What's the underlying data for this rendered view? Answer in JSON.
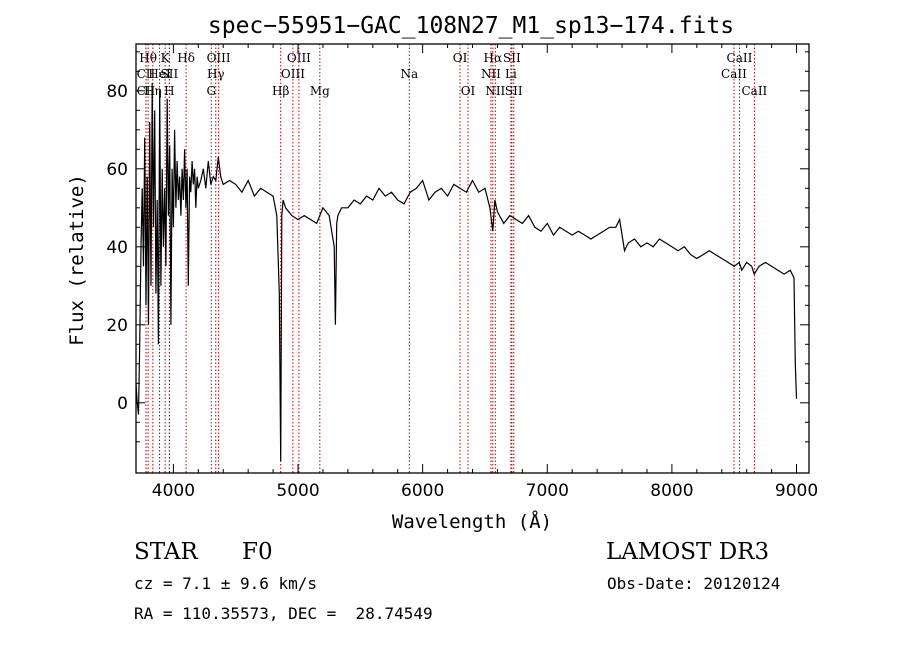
{
  "chart_data": {
    "type": "line",
    "title": "spec−55951−GAC_108N27_M1_sp13−174.fits",
    "xlabel": "Wavelength (Å)",
    "ylabel": "Flux (relative)",
    "xlim": [
      3700,
      9100
    ],
    "ylim": [
      -18,
      92
    ],
    "xticks": [
      4000,
      5000,
      6000,
      7000,
      8000,
      9000
    ],
    "yticks": [
      0,
      20,
      40,
      60,
      80
    ],
    "series": [
      {
        "name": "flux",
        "x": [
          3700,
          3710,
          3720,
          3730,
          3740,
          3750,
          3760,
          3770,
          3780,
          3790,
          3800,
          3810,
          3820,
          3830,
          3840,
          3850,
          3860,
          3870,
          3880,
          3890,
          3900,
          3910,
          3920,
          3930,
          3940,
          3950,
          3960,
          3970,
          3980,
          3990,
          4000,
          4010,
          4020,
          4030,
          4040,
          4050,
          4060,
          4070,
          4080,
          4090,
          4100,
          4110,
          4120,
          4130,
          4140,
          4150,
          4160,
          4170,
          4180,
          4190,
          4200,
          4220,
          4240,
          4260,
          4280,
          4300,
          4320,
          4340,
          4360,
          4380,
          4400,
          4450,
          4500,
          4550,
          4600,
          4650,
          4700,
          4750,
          4800,
          4830,
          4850,
          4861,
          4870,
          4880,
          4900,
          4950,
          5000,
          5050,
          5100,
          5150,
          5200,
          5250,
          5270,
          5290,
          5300,
          5310,
          5320,
          5350,
          5400,
          5450,
          5500,
          5550,
          5600,
          5650,
          5700,
          5750,
          5800,
          5850,
          5900,
          5950,
          6000,
          6050,
          6100,
          6150,
          6200,
          6250,
          6300,
          6350,
          6400,
          6450,
          6500,
          6540,
          6563,
          6580,
          6600,
          6650,
          6700,
          6750,
          6800,
          6850,
          6900,
          6950,
          7000,
          7050,
          7100,
          7150,
          7200,
          7250,
          7300,
          7350,
          7400,
          7450,
          7500,
          7550,
          7580,
          7600,
          7620,
          7650,
          7700,
          7750,
          7800,
          7850,
          7900,
          7950,
          8000,
          8050,
          8100,
          8150,
          8200,
          8250,
          8300,
          8350,
          8400,
          8450,
          8500,
          8540,
          8560,
          8600,
          8640,
          8660,
          8700,
          8750,
          8800,
          8850,
          8900,
          8950,
          8980,
          8990,
          9000
        ],
        "values": [
          5,
          0,
          -3,
          15,
          40,
          55,
          35,
          68,
          25,
          58,
          20,
          72,
          30,
          82,
          45,
          75,
          28,
          52,
          15,
          80,
          30,
          60,
          40,
          55,
          35,
          78,
          48,
          66,
          20,
          60,
          45,
          70,
          50,
          62,
          52,
          58,
          48,
          60,
          52,
          65,
          50,
          60,
          30,
          58,
          54,
          62,
          56,
          60,
          50,
          58,
          55,
          57,
          60,
          55,
          62,
          56,
          58,
          57,
          63,
          58,
          56,
          57,
          56,
          54,
          57,
          53,
          55,
          54,
          53,
          48,
          28,
          -15,
          48,
          52,
          50,
          48,
          47,
          48,
          47,
          46,
          50,
          48,
          44,
          40,
          20,
          46,
          48,
          50,
          50,
          52,
          51,
          53,
          52,
          55,
          53,
          54,
          52,
          51,
          54,
          55,
          57,
          52,
          54,
          55,
          53,
          56,
          55,
          54,
          57,
          54,
          55,
          50,
          44,
          52,
          49,
          46,
          48,
          47,
          46,
          48,
          45,
          44,
          46,
          43,
          45,
          44,
          43,
          44,
          43,
          42,
          43,
          44,
          45,
          45,
          47,
          43,
          39,
          41,
          42,
          40,
          41,
          40,
          42,
          41,
          40,
          39,
          40,
          38,
          37,
          38,
          39,
          38,
          37,
          36,
          35,
          36,
          34,
          36,
          35,
          33,
          35,
          36,
          35,
          34,
          33,
          34,
          32,
          10,
          1
        ]
      }
    ],
    "line_markers": [
      {
        "label": "Hθ",
        "x": 3797,
        "row": 1
      },
      {
        "label": "CII",
        "x": 3780,
        "row": 2
      },
      {
        "label": "CII",
        "x": 3780,
        "row": 3
      },
      {
        "label": "Hη",
        "x": 3835,
        "row": 3
      },
      {
        "label": "HeI",
        "x": 3889,
        "row": 2
      },
      {
        "label": "K",
        "x": 3934,
        "row": 1
      },
      {
        "label": "SII",
        "x": 3968,
        "row": 2
      },
      {
        "label": "H",
        "x": 3968,
        "row": 3
      },
      {
        "label": "Hδ",
        "x": 4102,
        "row": 1
      },
      {
        "label": "OIII",
        "x": 4363,
        "row": 1
      },
      {
        "label": "Hγ",
        "x": 4340,
        "row": 2
      },
      {
        "label": "G",
        "x": 4304,
        "row": 3
      },
      {
        "label": "Hβ",
        "x": 4861,
        "row": 3
      },
      {
        "label": "OIII",
        "x": 5007,
        "row": 1
      },
      {
        "label": "OIII",
        "x": 4959,
        "row": 2
      },
      {
        "label": "Mg",
        "x": 5175,
        "row": 3
      },
      {
        "label": "Na",
        "x": 5893,
        "row": 2
      },
      {
        "label": "OI",
        "x": 6300,
        "row": 1
      },
      {
        "label": "OI",
        "x": 6364,
        "row": 3
      },
      {
        "label": "Hα",
        "x": 6563,
        "row": 1
      },
      {
        "label": "NII",
        "x": 6548,
        "row": 2
      },
      {
        "label": "NII",
        "x": 6583,
        "row": 3
      },
      {
        "label": "SII",
        "x": 6716,
        "row": 1
      },
      {
        "label": "Li",
        "x": 6708,
        "row": 2
      },
      {
        "label": "SII",
        "x": 6731,
        "row": 3
      },
      {
        "label": "CaII",
        "x": 8542,
        "row": 1
      },
      {
        "label": "CaII",
        "x": 8498,
        "row": 2
      },
      {
        "label": "CaII",
        "x": 8662,
        "row": 3
      }
    ]
  },
  "info": {
    "class": "STAR",
    "subclass": "F0",
    "survey": "LAMOST DR3",
    "cz": "cz = 7.1 ± 9.6 km/s",
    "obs_date": "Obs-Date: 20120124",
    "coords": "RA = 110.35573, DEC =  28.74549"
  }
}
